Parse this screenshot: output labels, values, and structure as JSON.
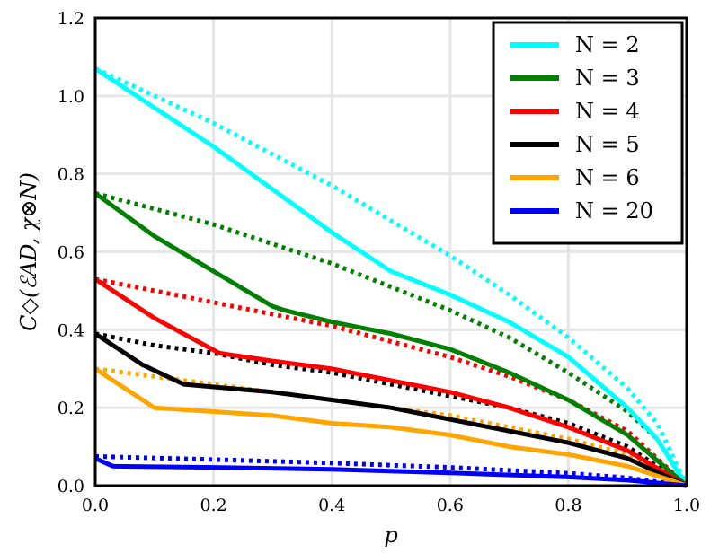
{
  "chart_data": {
    "type": "line",
    "xlabel": "p",
    "ylabel": "C◇(ℰAD, χ⊗N)",
    "xlim": [
      0.0,
      1.0
    ],
    "ylim": [
      0.0,
      1.2
    ],
    "xticks": [
      "0.0",
      "0.2",
      "0.4",
      "0.6",
      "0.8",
      "1.0"
    ],
    "yticks": [
      "0.0",
      "0.2",
      "0.4",
      "0.6",
      "0.8",
      "1.0",
      "1.2"
    ],
    "grid": true,
    "legend": "top-right",
    "series": [
      {
        "name": "N = 2",
        "color": "#00ffff",
        "solid": [
          [
            0,
            1.07
          ],
          [
            0.1,
            0.97
          ],
          [
            0.2,
            0.87
          ],
          [
            0.3,
            0.76
          ],
          [
            0.4,
            0.65
          ],
          [
            0.5,
            0.55
          ],
          [
            0.55,
            0.52
          ],
          [
            0.6,
            0.49
          ],
          [
            0.7,
            0.42
          ],
          [
            0.8,
            0.33
          ],
          [
            0.9,
            0.2
          ],
          [
            0.95,
            0.12
          ],
          [
            1.0,
            0.0
          ]
        ],
        "dotted": [
          [
            0,
            1.07
          ],
          [
            0.1,
            1.0
          ],
          [
            0.2,
            0.93
          ],
          [
            0.3,
            0.85
          ],
          [
            0.4,
            0.77
          ],
          [
            0.5,
            0.68
          ],
          [
            0.6,
            0.59
          ],
          [
            0.7,
            0.49
          ],
          [
            0.8,
            0.38
          ],
          [
            0.9,
            0.25
          ],
          [
            0.95,
            0.16
          ],
          [
            1.0,
            0.0
          ]
        ]
      },
      {
        "name": "N = 3",
        "color": "#008000",
        "solid": [
          [
            0,
            0.75
          ],
          [
            0.1,
            0.64
          ],
          [
            0.2,
            0.55
          ],
          [
            0.3,
            0.46
          ],
          [
            0.32,
            0.45
          ],
          [
            0.4,
            0.42
          ],
          [
            0.5,
            0.39
          ],
          [
            0.6,
            0.35
          ],
          [
            0.7,
            0.29
          ],
          [
            0.8,
            0.22
          ],
          [
            0.9,
            0.13
          ],
          [
            1.0,
            0.0
          ]
        ],
        "dotted": [
          [
            0,
            0.75
          ],
          [
            0.1,
            0.71
          ],
          [
            0.2,
            0.67
          ],
          [
            0.3,
            0.62
          ],
          [
            0.4,
            0.57
          ],
          [
            0.5,
            0.51
          ],
          [
            0.6,
            0.45
          ],
          [
            0.7,
            0.38
          ],
          [
            0.8,
            0.29
          ],
          [
            0.9,
            0.19
          ],
          [
            0.95,
            0.12
          ],
          [
            1.0,
            0.0
          ]
        ]
      },
      {
        "name": "N = 4",
        "color": "#ff0000",
        "solid": [
          [
            0,
            0.53
          ],
          [
            0.1,
            0.43
          ],
          [
            0.21,
            0.34
          ],
          [
            0.3,
            0.32
          ],
          [
            0.4,
            0.3
          ],
          [
            0.5,
            0.27
          ],
          [
            0.6,
            0.24
          ],
          [
            0.7,
            0.2
          ],
          [
            0.8,
            0.15
          ],
          [
            0.9,
            0.09
          ],
          [
            1.0,
            0.0
          ]
        ],
        "dotted": [
          [
            0,
            0.53
          ],
          [
            0.1,
            0.5
          ],
          [
            0.2,
            0.47
          ],
          [
            0.3,
            0.44
          ],
          [
            0.4,
            0.41
          ],
          [
            0.5,
            0.37
          ],
          [
            0.6,
            0.33
          ],
          [
            0.7,
            0.28
          ],
          [
            0.8,
            0.22
          ],
          [
            0.9,
            0.14
          ],
          [
            1.0,
            0.0
          ]
        ]
      },
      {
        "name": "N = 5",
        "color": "#000000",
        "solid": [
          [
            0,
            0.39
          ],
          [
            0.08,
            0.31
          ],
          [
            0.15,
            0.26
          ],
          [
            0.3,
            0.24
          ],
          [
            0.4,
            0.22
          ],
          [
            0.5,
            0.2
          ],
          [
            0.6,
            0.17
          ],
          [
            0.7,
            0.14
          ],
          [
            0.8,
            0.11
          ],
          [
            0.9,
            0.07
          ],
          [
            1.0,
            0.0
          ]
        ],
        "dotted": [
          [
            0,
            0.39
          ],
          [
            0.1,
            0.36
          ],
          [
            0.2,
            0.34
          ],
          [
            0.3,
            0.31
          ],
          [
            0.4,
            0.29
          ],
          [
            0.5,
            0.26
          ],
          [
            0.6,
            0.23
          ],
          [
            0.7,
            0.2
          ],
          [
            0.8,
            0.16
          ],
          [
            0.9,
            0.1
          ],
          [
            1.0,
            0.0
          ]
        ]
      },
      {
        "name": "N = 6",
        "color": "#ffa500",
        "solid": [
          [
            0,
            0.3
          ],
          [
            0.05,
            0.25
          ],
          [
            0.1,
            0.2
          ],
          [
            0.2,
            0.19
          ],
          [
            0.3,
            0.18
          ],
          [
            0.4,
            0.16
          ],
          [
            0.5,
            0.15
          ],
          [
            0.6,
            0.13
          ],
          [
            0.7,
            0.1
          ],
          [
            0.8,
            0.08
          ],
          [
            0.9,
            0.05
          ],
          [
            1.0,
            0.0
          ]
        ],
        "dotted": [
          [
            0,
            0.3
          ],
          [
            0.1,
            0.28
          ],
          [
            0.2,
            0.26
          ],
          [
            0.3,
            0.24
          ],
          [
            0.4,
            0.22
          ],
          [
            0.5,
            0.2
          ],
          [
            0.6,
            0.18
          ],
          [
            0.7,
            0.15
          ],
          [
            0.8,
            0.12
          ],
          [
            0.9,
            0.08
          ],
          [
            1.0,
            0.0
          ]
        ]
      },
      {
        "name": "N = 20",
        "color": "#0000ff",
        "solid": [
          [
            0,
            0.07
          ],
          [
            0.03,
            0.05
          ],
          [
            0.2,
            0.047
          ],
          [
            0.4,
            0.042
          ],
          [
            0.6,
            0.033
          ],
          [
            0.8,
            0.022
          ],
          [
            0.9,
            0.014
          ],
          [
            1.0,
            0.0
          ]
        ],
        "dotted": [
          [
            0,
            0.075
          ],
          [
            0.2,
            0.067
          ],
          [
            0.4,
            0.058
          ],
          [
            0.6,
            0.047
          ],
          [
            0.8,
            0.032
          ],
          [
            0.9,
            0.02
          ],
          [
            1.0,
            0.0
          ]
        ]
      }
    ]
  }
}
